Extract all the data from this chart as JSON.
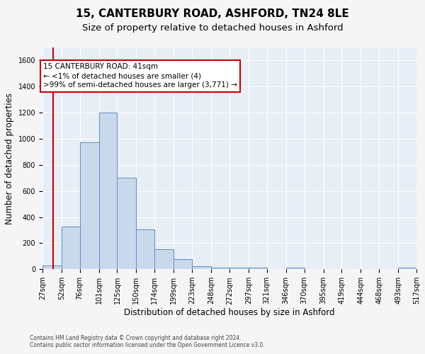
{
  "title": "15, CANTERBURY ROAD, ASHFORD, TN24 8LE",
  "subtitle": "Size of property relative to detached houses in Ashford",
  "xlabel": "Distribution of detached houses by size in Ashford",
  "ylabel": "Number of detached properties",
  "footnote1": "Contains HM Land Registry data © Crown copyright and database right 2024.",
  "footnote2": "Contains public sector information licensed under the Open Government Licence v3.0.",
  "bar_edges": [
    27,
    52,
    76,
    101,
    125,
    150,
    174,
    199,
    223,
    248,
    272,
    297,
    321,
    346,
    370,
    395,
    419,
    444,
    468,
    493,
    517
  ],
  "bar_heights": [
    30,
    325,
    970,
    1200,
    700,
    305,
    155,
    75,
    25,
    15,
    15,
    15,
    0,
    15,
    0,
    0,
    0,
    0,
    0,
    15
  ],
  "bar_color": "#c9d9ec",
  "bar_edgecolor": "#5b8ec4",
  "property_size": 41,
  "property_line_color": "#cc0000",
  "annotation_line1": "15 CANTERBURY ROAD: 41sqm",
  "annotation_line2": "← <1% of detached houses are smaller (4)",
  "annotation_line3": ">99% of semi-detached houses are larger (3,771) →",
  "annotation_box_color": "#ffffff",
  "annotation_box_edgecolor": "#cc0000",
  "ylim": [
    0,
    1700
  ],
  "xlim": [
    27,
    517
  ],
  "plot_bgcolor": "#e8eef5",
  "fig_bgcolor": "#f5f5f5",
  "grid_color": "#ffffff",
  "title_fontsize": 11,
  "subtitle_fontsize": 9.5,
  "tick_label_fontsize": 7,
  "ylabel_fontsize": 8.5,
  "xlabel_fontsize": 8.5,
  "annotation_fontsize": 7.5,
  "footnote_fontsize": 5.5,
  "yticks": [
    0,
    200,
    400,
    600,
    800,
    1000,
    1200,
    1400,
    1600
  ]
}
